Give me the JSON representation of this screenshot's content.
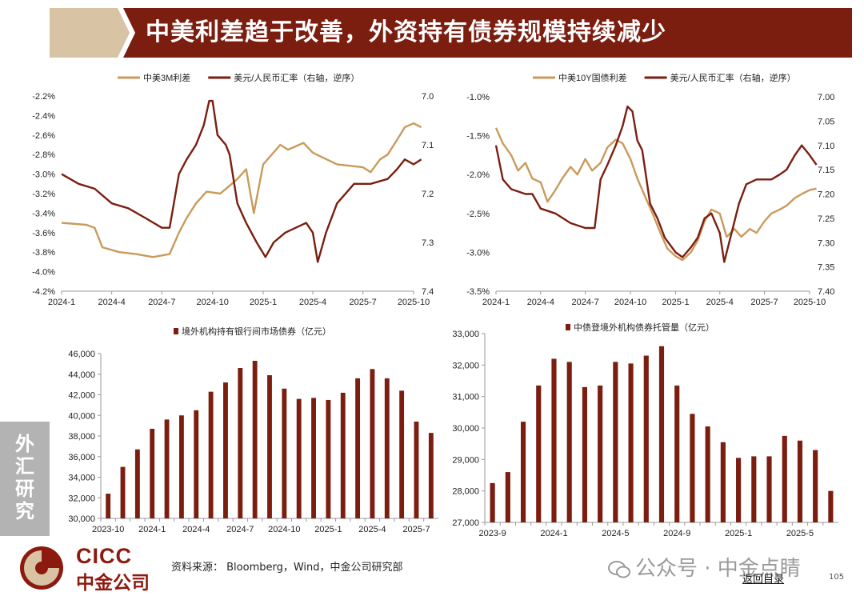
{
  "title": "中美利差趋于改善，外资持有债券规模持续减少",
  "side_tag": "外汇研究",
  "footer": {
    "source": "资料来源： Bloomberg，Wind，中金公司研究部",
    "logo_en": "CICC",
    "logo_cn": "中金公司",
    "watermark": "公众号 · 中金点睛",
    "back_link": "返回目录",
    "page_number": "105"
  },
  "colors": {
    "maroon": "#7b1e10",
    "gold": "#c99a5b",
    "title_bg": "#7b1e10",
    "title_accent": "#d8c3a5"
  },
  "chart_data": [
    {
      "type": "line",
      "legend_position": "top",
      "x_ticks": [
        "2024-1",
        "2024-4",
        "2024-7",
        "2024-10",
        "2025-1",
        "2025-4",
        "2025-7",
        "2025-10"
      ],
      "y_left_ticks": [
        "-2.2%",
        "-2.4%",
        "-2.6%",
        "-2.8%",
        "-3.0%",
        "-3.2%",
        "-3.4%",
        "-3.6%",
        "-3.8%",
        "-4.0%",
        "-4.2%"
      ],
      "y_right_ticks": [
        "7.0",
        "7.1",
        "7.2",
        "7.3",
        "7.4"
      ],
      "ylim_left": [
        -4.2,
        -2.2
      ],
      "ylim_right": [
        7.4,
        7.0
      ],
      "series": [
        {
          "name": "中美3M利差",
          "axis": "left",
          "color": "#c99a5b",
          "points": [
            [
              "2024-01-01",
              -3.5
            ],
            [
              "2024-02-15",
              -3.52
            ],
            [
              "2024-03-01",
              -3.55
            ],
            [
              "2024-03-15",
              -3.75
            ],
            [
              "2024-04-15",
              -3.8
            ],
            [
              "2024-05-15",
              -3.82
            ],
            [
              "2024-06-15",
              -3.85
            ],
            [
              "2024-07-15",
              -3.82
            ],
            [
              "2024-08-01",
              -3.6
            ],
            [
              "2024-08-15",
              -3.45
            ],
            [
              "2024-09-01",
              -3.3
            ],
            [
              "2024-09-20",
              -3.18
            ],
            [
              "2024-10-15",
              -3.2
            ],
            [
              "2024-11-01",
              -3.12
            ],
            [
              "2024-11-15",
              -3.05
            ],
            [
              "2024-12-01",
              -2.95
            ],
            [
              "2024-12-15",
              -3.4
            ],
            [
              "2025-01-01",
              -2.9
            ],
            [
              "2025-02-01",
              -2.7
            ],
            [
              "2025-02-15",
              -2.75
            ],
            [
              "2025-03-15",
              -2.68
            ],
            [
              "2025-04-01",
              -2.78
            ],
            [
              "2025-04-15",
              -2.82
            ],
            [
              "2025-05-15",
              -2.9
            ],
            [
              "2025-06-15",
              -2.92
            ],
            [
              "2025-07-01",
              -2.93
            ],
            [
              "2025-07-15",
              -2.98
            ],
            [
              "2025-08-01",
              -2.85
            ],
            [
              "2025-08-15",
              -2.8
            ],
            [
              "2025-09-01",
              -2.65
            ],
            [
              "2025-09-15",
              -2.52
            ],
            [
              "2025-10-01",
              -2.48
            ],
            [
              "2025-10-15",
              -2.52
            ]
          ]
        },
        {
          "name": "美元/人民币汇率（右轴，逆序）",
          "axis": "right",
          "color": "#7b1e10",
          "points": [
            [
              "2024-01-01",
              7.16
            ],
            [
              "2024-02-01",
              7.18
            ],
            [
              "2024-03-01",
              7.19
            ],
            [
              "2024-04-01",
              7.22
            ],
            [
              "2024-05-01",
              7.23
            ],
            [
              "2024-06-01",
              7.25
            ],
            [
              "2024-07-01",
              7.27
            ],
            [
              "2024-07-15",
              7.27
            ],
            [
              "2024-08-01",
              7.16
            ],
            [
              "2024-08-15",
              7.13
            ],
            [
              "2024-09-01",
              7.1
            ],
            [
              "2024-09-15",
              7.06
            ],
            [
              "2024-09-25",
              7.01
            ],
            [
              "2024-10-01",
              7.01
            ],
            [
              "2024-10-10",
              7.08
            ],
            [
              "2024-10-25",
              7.1
            ],
            [
              "2024-11-01",
              7.12
            ],
            [
              "2024-11-15",
              7.22
            ],
            [
              "2024-12-01",
              7.26
            ],
            [
              "2024-12-20",
              7.3
            ],
            [
              "2025-01-05",
              7.33
            ],
            [
              "2025-01-20",
              7.3
            ],
            [
              "2025-02-10",
              7.28
            ],
            [
              "2025-03-01",
              7.27
            ],
            [
              "2025-03-20",
              7.26
            ],
            [
              "2025-04-01",
              7.28
            ],
            [
              "2025-04-10",
              7.34
            ],
            [
              "2025-04-25",
              7.28
            ],
            [
              "2025-05-15",
              7.22
            ],
            [
              "2025-06-15",
              7.18
            ],
            [
              "2025-07-15",
              7.18
            ],
            [
              "2025-08-15",
              7.17
            ],
            [
              "2025-09-01",
              7.15
            ],
            [
              "2025-09-15",
              7.13
            ],
            [
              "2025-10-01",
              7.14
            ],
            [
              "2025-10-15",
              7.13
            ]
          ]
        }
      ]
    },
    {
      "type": "line",
      "legend_position": "top",
      "x_ticks": [
        "2024-1",
        "2024-4",
        "2024-7",
        "2024-10",
        "2025-1",
        "2025-4",
        "2025-7",
        "2025-10"
      ],
      "y_left_ticks": [
        "-1.0%",
        "-1.5%",
        "-2.0%",
        "-2.5%",
        "-3.0%",
        "-3.5%"
      ],
      "y_right_ticks": [
        "7.00",
        "7.05",
        "7.10",
        "7.15",
        "7.20",
        "7.25",
        "7.30",
        "7.35",
        "7.40"
      ],
      "ylim_left": [
        -3.5,
        -1.0
      ],
      "ylim_right": [
        7.4,
        7.0
      ],
      "series": [
        {
          "name": "中美10Y国债利差",
          "axis": "left",
          "color": "#c99a5b",
          "points": [
            [
              "2024-01-01",
              -1.4
            ],
            [
              "2024-01-15",
              -1.6
            ],
            [
              "2024-02-01",
              -1.75
            ],
            [
              "2024-02-15",
              -1.95
            ],
            [
              "2024-03-01",
              -1.85
            ],
            [
              "2024-03-15",
              -2.05
            ],
            [
              "2024-04-01",
              -2.1
            ],
            [
              "2024-04-15",
              -2.35
            ],
            [
              "2024-05-01",
              -2.2
            ],
            [
              "2024-05-15",
              -2.05
            ],
            [
              "2024-06-01",
              -1.9
            ],
            [
              "2024-06-15",
              -2.0
            ],
            [
              "2024-07-01",
              -1.8
            ],
            [
              "2024-07-15",
              -1.95
            ],
            [
              "2024-08-01",
              -1.85
            ],
            [
              "2024-08-15",
              -1.65
            ],
            [
              "2024-09-01",
              -1.55
            ],
            [
              "2024-09-15",
              -1.6
            ],
            [
              "2024-10-01",
              -1.8
            ],
            [
              "2024-10-15",
              -2.05
            ],
            [
              "2024-11-01",
              -2.3
            ],
            [
              "2024-11-15",
              -2.5
            ],
            [
              "2024-12-01",
              -2.75
            ],
            [
              "2024-12-15",
              -2.95
            ],
            [
              "2025-01-01",
              -3.05
            ],
            [
              "2025-01-15",
              -3.1
            ],
            [
              "2025-02-01",
              -3.0
            ],
            [
              "2025-02-15",
              -2.85
            ],
            [
              "2025-03-01",
              -2.6
            ],
            [
              "2025-03-15",
              -2.45
            ],
            [
              "2025-04-01",
              -2.5
            ],
            [
              "2025-04-15",
              -2.8
            ],
            [
              "2025-05-01",
              -2.7
            ],
            [
              "2025-05-15",
              -2.8
            ],
            [
              "2025-06-01",
              -2.7
            ],
            [
              "2025-06-15",
              -2.75
            ],
            [
              "2025-07-01",
              -2.6
            ],
            [
              "2025-07-15",
              -2.5
            ],
            [
              "2025-08-01",
              -2.45
            ],
            [
              "2025-08-15",
              -2.4
            ],
            [
              "2025-09-01",
              -2.3
            ],
            [
              "2025-09-15",
              -2.25
            ],
            [
              "2025-10-01",
              -2.2
            ],
            [
              "2025-10-15",
              -2.18
            ]
          ]
        },
        {
          "name": "美元/人民币汇率（右轴，逆序）",
          "axis": "right",
          "color": "#7b1e10",
          "points": [
            [
              "2024-01-01",
              7.1
            ],
            [
              "2024-01-15",
              7.17
            ],
            [
              "2024-02-01",
              7.19
            ],
            [
              "2024-03-01",
              7.2
            ],
            [
              "2024-03-15",
              7.2
            ],
            [
              "2024-04-01",
              7.23
            ],
            [
              "2024-05-01",
              7.24
            ],
            [
              "2024-06-01",
              7.26
            ],
            [
              "2024-07-01",
              7.27
            ],
            [
              "2024-07-20",
              7.27
            ],
            [
              "2024-08-01",
              7.17
            ],
            [
              "2024-08-15",
              7.14
            ],
            [
              "2024-09-01",
              7.1
            ],
            [
              "2024-09-15",
              7.06
            ],
            [
              "2024-09-25",
              7.02
            ],
            [
              "2024-10-05",
              7.03
            ],
            [
              "2024-10-15",
              7.09
            ],
            [
              "2024-10-25",
              7.11
            ],
            [
              "2024-11-10",
              7.22
            ],
            [
              "2024-11-25",
              7.25
            ],
            [
              "2024-12-10",
              7.29
            ],
            [
              "2025-01-01",
              7.32
            ],
            [
              "2025-01-15",
              7.33
            ],
            [
              "2025-02-01",
              7.31
            ],
            [
              "2025-02-15",
              7.29
            ],
            [
              "2025-03-01",
              7.25
            ],
            [
              "2025-03-15",
              7.24
            ],
            [
              "2025-04-01",
              7.28
            ],
            [
              "2025-04-10",
              7.34
            ],
            [
              "2025-04-25",
              7.28
            ],
            [
              "2025-05-10",
              7.22
            ],
            [
              "2025-05-25",
              7.18
            ],
            [
              "2025-06-15",
              7.17
            ],
            [
              "2025-07-15",
              7.17
            ],
            [
              "2025-08-01",
              7.16
            ],
            [
              "2025-08-15",
              7.15
            ],
            [
              "2025-09-01",
              7.12
            ],
            [
              "2025-09-15",
              7.1
            ],
            [
              "2025-10-01",
              7.12
            ],
            [
              "2025-10-15",
              7.14
            ]
          ]
        }
      ]
    },
    {
      "type": "bar",
      "legend_position": "top",
      "series_name": "境外机构持有银行间市场债券（亿元）",
      "color": "#7b1e10",
      "ylim": [
        30000,
        46000
      ],
      "y_ticks": [
        "46,000",
        "44,000",
        "42,000",
        "40,000",
        "38,000",
        "36,000",
        "34,000",
        "32,000",
        "30,000"
      ],
      "x_ticks": [
        "2023-10",
        "2024-1",
        "2024-4",
        "2024-7",
        "2024-10",
        "2025-1",
        "2025-4",
        "2025-7"
      ],
      "categories": [
        "2023-10",
        "2023-11",
        "2023-12",
        "2024-1",
        "2024-2",
        "2024-3",
        "2024-4",
        "2024-5",
        "2024-6",
        "2024-7",
        "2024-8",
        "2024-9",
        "2024-10",
        "2024-11",
        "2024-12",
        "2025-1",
        "2025-2",
        "2025-3",
        "2025-4",
        "2025-5",
        "2025-6",
        "2025-7",
        "2025-8"
      ],
      "values": [
        32400,
        35000,
        36700,
        38700,
        39600,
        40000,
        40500,
        42300,
        43200,
        44600,
        45300,
        43900,
        42600,
        41600,
        41700,
        41500,
        42200,
        43600,
        44500,
        43600,
        42400,
        39400,
        38300
      ]
    },
    {
      "type": "bar",
      "legend_position": "top",
      "series_name": "中债登境外机构债券托管量（亿元）",
      "color": "#7b1e10",
      "ylim": [
        27000,
        33000
      ],
      "y_ticks": [
        "33,000",
        "32,000",
        "31,000",
        "30,000",
        "29,000",
        "28,000",
        "27,000"
      ],
      "x_ticks": [
        "2023-9",
        "2024-1",
        "2024-5",
        "2024-9",
        "2025-1",
        "2025-5"
      ],
      "categories": [
        "2023-9",
        "2023-10",
        "2023-11",
        "2023-12",
        "2024-1",
        "2024-2",
        "2024-3",
        "2024-4",
        "2024-5",
        "2024-6",
        "2024-7",
        "2024-8",
        "2024-9",
        "2024-10",
        "2024-11",
        "2024-12",
        "2025-1",
        "2025-2",
        "2025-3",
        "2025-4",
        "2025-5",
        "2025-6",
        "2025-7"
      ],
      "values": [
        28250,
        28600,
        30200,
        31350,
        32200,
        32100,
        31300,
        31350,
        32100,
        32050,
        32300,
        32600,
        31350,
        30450,
        30050,
        29550,
        29050,
        29100,
        29100,
        29750,
        29600,
        29300,
        28000
      ]
    }
  ]
}
